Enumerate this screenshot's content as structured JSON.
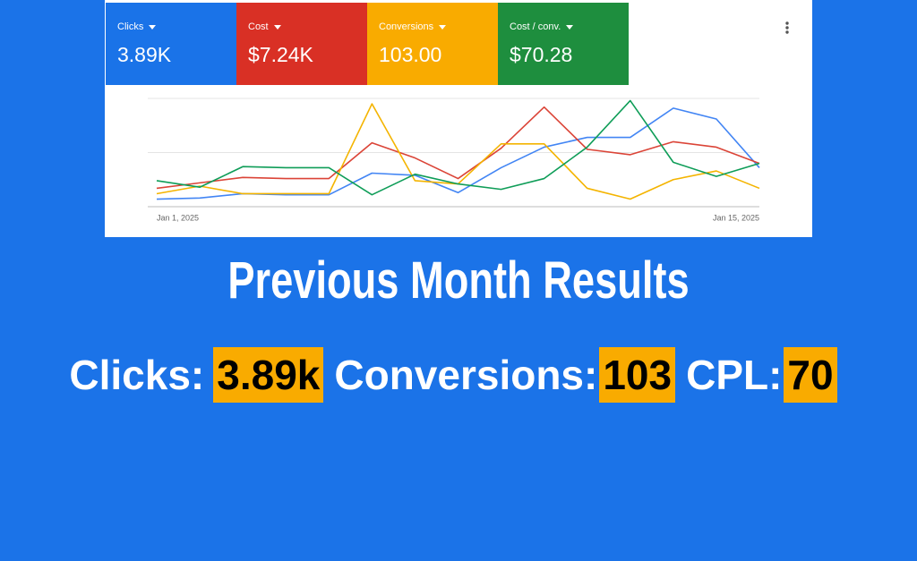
{
  "cards": [
    {
      "label": "Clicks",
      "value": "3.89K",
      "color": "#1a73e8"
    },
    {
      "label": "Cost",
      "value": "$7.24K",
      "color": "#d93025"
    },
    {
      "label": "Conversions",
      "value": "103.00",
      "color": "#f9ab00"
    },
    {
      "label": "Cost / conv.",
      "value": "$70.28",
      "color": "#1e8e3e"
    }
  ],
  "chart_data": {
    "type": "line",
    "x": [
      "Jan 1, 2025",
      null,
      null,
      null,
      null,
      null,
      null,
      null,
      null,
      null,
      null,
      null,
      null,
      null,
      "Jan 15, 2025"
    ],
    "series": [
      {
        "color": "#4285f4",
        "values": [
          7,
          8,
          12,
          11,
          11,
          31,
          29,
          13,
          36,
          55,
          64,
          64,
          91,
          81,
          36
        ]
      },
      {
        "color": "#db4437",
        "values": [
          17,
          22,
          27,
          26,
          26,
          59,
          45,
          26,
          54,
          92,
          53,
          48,
          60,
          55,
          40
        ]
      },
      {
        "color": "#f4b400",
        "values": [
          12,
          19,
          12,
          12,
          12,
          95,
          24,
          21,
          58,
          58,
          17,
          7,
          25,
          33,
          17
        ]
      },
      {
        "color": "#0f9d58",
        "values": [
          24,
          18,
          37,
          36,
          36,
          11,
          30,
          21,
          16,
          26,
          55,
          98,
          41,
          28,
          40
        ]
      }
    ],
    "ylim": [
      0,
      100
    ],
    "yticks": [
      0,
      50,
      100
    ],
    "grid": true
  },
  "headline": "Previous Month Results",
  "summary": [
    {
      "label": "Clicks:",
      "value": "3.89k"
    },
    {
      "label": "Conversions:",
      "value": "103"
    },
    {
      "label": "CPL:",
      "value": "70"
    }
  ],
  "highlight_color": "#f9ab00"
}
